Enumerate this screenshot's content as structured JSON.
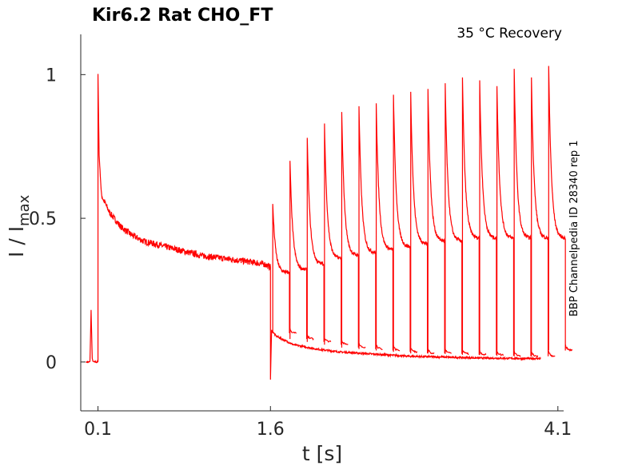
{
  "chart_data": {
    "type": "line",
    "title": "Kir6.2  Rat  CHO_FT",
    "annotation": "35 °C  Recovery",
    "side_label": "BBP Channelpedia ID 28340 rep 1",
    "xlabel": "t [s]",
    "ylabel_main": "I / I",
    "ylabel_sub": "max",
    "xlim": [
      -0.05,
      4.15
    ],
    "ylim": [
      -0.17,
      1.14
    ],
    "xticks": [
      {
        "value": 0.1,
        "label": "0.1"
      },
      {
        "value": 1.6,
        "label": "1.6"
      },
      {
        "value": 4.1,
        "label": "4.1"
      }
    ],
    "yticks": [
      {
        "value": 0,
        "label": "0"
      },
      {
        "value": 0.5,
        "label": "0.5"
      },
      {
        "value": 1,
        "label": "1"
      }
    ],
    "color": "#ff0000",
    "series": [
      {
        "kind": "conditioning",
        "x": [
          0.0,
          0.03,
          0.04,
          0.05,
          0.06,
          0.1,
          0.1,
          0.11,
          0.13,
          0.2,
          0.3,
          0.4,
          0.5,
          0.6,
          0.8,
          1.0,
          1.2,
          1.4,
          1.55,
          1.6,
          1.6,
          1.61,
          1.65,
          1.8,
          2.0,
          2.2,
          2.4,
          2.6,
          2.8,
          3.0,
          3.2,
          3.4,
          3.6,
          3.8,
          3.95
        ],
        "y": [
          0.0,
          0.0,
          0.18,
          0.01,
          0.0,
          0.0,
          1.0,
          0.72,
          0.58,
          0.52,
          0.47,
          0.44,
          0.42,
          0.41,
          0.39,
          0.37,
          0.36,
          0.35,
          0.34,
          0.33,
          -0.06,
          0.11,
          0.09,
          0.06,
          0.045,
          0.035,
          0.03,
          0.025,
          0.02,
          0.018,
          0.016,
          0.014,
          0.013,
          0.012,
          0.012
        ]
      }
    ],
    "recovery_pulses": [
      {
        "t": 1.62,
        "peak": 0.55,
        "end": 0.31,
        "base": 0.1
      },
      {
        "t": 1.77,
        "peak": 0.7,
        "end": 0.32,
        "base": 0.08
      },
      {
        "t": 1.92,
        "peak": 0.78,
        "end": 0.34,
        "base": 0.07
      },
      {
        "t": 2.07,
        "peak": 0.83,
        "end": 0.36,
        "base": 0.06
      },
      {
        "t": 2.22,
        "peak": 0.87,
        "end": 0.37,
        "base": 0.05
      },
      {
        "t": 2.37,
        "peak": 0.89,
        "end": 0.38,
        "base": 0.045
      },
      {
        "t": 2.52,
        "peak": 0.9,
        "end": 0.39,
        "base": 0.04
      },
      {
        "t": 2.67,
        "peak": 0.93,
        "end": 0.4,
        "base": 0.035
      },
      {
        "t": 2.82,
        "peak": 0.94,
        "end": 0.41,
        "base": 0.03
      },
      {
        "t": 2.97,
        "peak": 0.95,
        "end": 0.42,
        "base": 0.03
      },
      {
        "t": 3.12,
        "peak": 0.97,
        "end": 0.42,
        "base": 0.028
      },
      {
        "t": 3.27,
        "peak": 0.99,
        "end": 0.43,
        "base": 0.025
      },
      {
        "t": 3.42,
        "peak": 0.98,
        "end": 0.43,
        "base": 0.024
      },
      {
        "t": 3.57,
        "peak": 0.96,
        "end": 0.43,
        "base": 0.022
      },
      {
        "t": 3.72,
        "peak": 1.02,
        "end": 0.43,
        "base": 0.02
      },
      {
        "t": 3.87,
        "peak": 0.99,
        "end": 0.43,
        "base": 0.02
      },
      {
        "t": 4.02,
        "peak": 1.03,
        "end": 0.43,
        "base": 0.04
      }
    ],
    "grid": false
  }
}
